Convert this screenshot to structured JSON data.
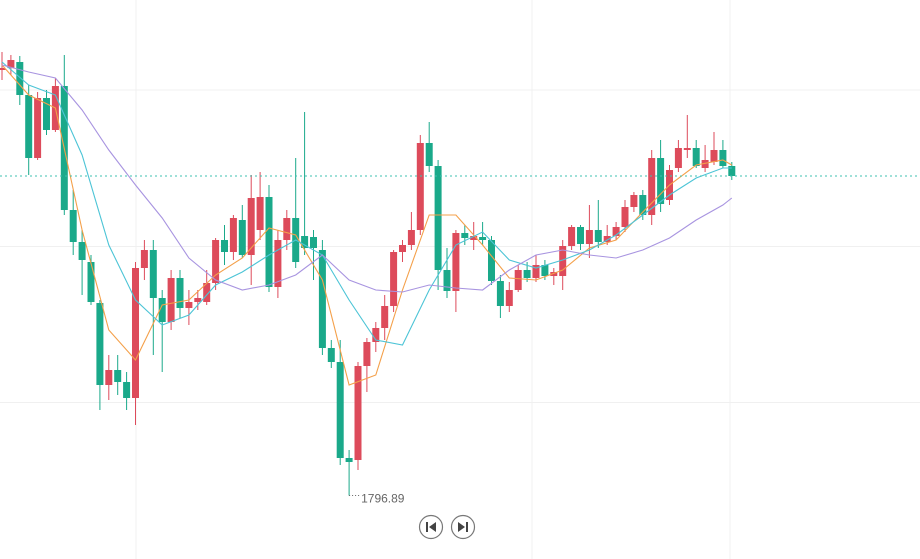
{
  "chart_data": {
    "type": "candlestick",
    "ylim": [
      1784.2,
      1896
    ],
    "ygrid": [
      1815.5,
      1846.7,
      1878
    ],
    "up_color": "#dd4b5b",
    "down_color": "#1aa98a",
    "open": [
      1882,
      1882.4,
      1883.6,
      1877,
      1864.4,
      1876.4,
      1870,
      1878.8,
      1854,
      1847.6,
      1843.6,
      1835.4,
      1819,
      1822,
      1819.6,
      1816.4,
      1842.4,
      1846,
      1836.4,
      1831.6,
      1840.4,
      1834.4,
      1835.6,
      1835.6,
      1839.4,
      1848,
      1845.6,
      1852,
      1845,
      1850,
      1856.6,
      1838.6,
      1848,
      1852.4,
      1848.8,
      1848.6,
      1846,
      1826.4,
      1823.6,
      1804.4,
      1804,
      1822.8,
      1827.6,
      1830.4,
      1834.8,
      1845.6,
      1847,
      1850,
      1867.4,
      1862.8,
      1842,
      1837.8,
      1849.4,
      1848,
      1848.6,
      1848,
      1839.8,
      1834.8,
      1838,
      1842,
      1840.4,
      1843,
      1840.8,
      1840.8,
      1846.8,
      1850.6,
      1847.2,
      1850,
      1847.6,
      1848.8,
      1850.6,
      1854.6,
      1857,
      1853,
      1864.4,
      1856,
      1862.4,
      1866,
      1866.4,
      1862.4,
      1863.6,
      1866,
      1862.8
    ],
    "high": [
      1885.6,
      1885,
      1884.8,
      1879,
      1877.6,
      1878,
      1880.4,
      1885,
      1858,
      1850,
      1845,
      1836,
      1825,
      1825,
      1821.6,
      1843.6,
      1848,
      1848,
      1838,
      1842,
      1842,
      1838,
      1838,
      1842,
      1848.4,
      1851,
      1853,
      1855,
      1861,
      1861.6,
      1859,
      1850,
      1854,
      1864.4,
      1873.6,
      1850,
      1848,
      1828,
      1828,
      1806,
      1823.6,
      1828.4,
      1831.6,
      1837,
      1846,
      1848,
      1853.6,
      1869,
      1871.6,
      1864,
      1846.4,
      1850,
      1851,
      1851.6,
      1851.6,
      1848.8,
      1841,
      1839.6,
      1843,
      1843.6,
      1845,
      1844,
      1842.4,
      1848,
      1851,
      1851,
      1855,
      1856,
      1851,
      1851.6,
      1856,
      1857.6,
      1858,
      1866,
      1868,
      1863,
      1868,
      1873,
      1868,
      1867,
      1869.6,
      1868,
      1863.6
    ],
    "low": [
      1880,
      1881,
      1875,
      1861,
      1864,
      1869,
      1869.6,
      1853,
      1845,
      1837,
      1835,
      1814,
      1816,
      1817,
      1814,
      1811,
      1840,
      1825,
      1821.6,
      1830,
      1832.4,
      1831,
      1834,
      1835,
      1838,
      1843,
      1844,
      1844.4,
      1839,
      1848,
      1837.6,
      1836.4,
      1846,
      1842.4,
      1845,
      1840,
      1825,
      1822.4,
      1803,
      1796.89,
      1802,
      1817.6,
      1825.6,
      1828,
      1833.6,
      1843.6,
      1846,
      1849,
      1861.6,
      1838,
      1836.4,
      1833.6,
      1847,
      1846,
      1847,
      1839,
      1832.4,
      1833.6,
      1837.6,
      1839.6,
      1839.6,
      1840,
      1839,
      1838,
      1846,
      1846,
      1844.4,
      1846.4,
      1847,
      1848,
      1849.6,
      1853.6,
      1852,
      1851,
      1853.6,
      1855,
      1861.6,
      1864.4,
      1862.4,
      1861.6,
      1863,
      1862.4,
      1860
    ],
    "close": [
      1882.4,
      1884,
      1877,
      1864.4,
      1876.4,
      1870,
      1878.8,
      1854,
      1847.6,
      1844,
      1835.6,
      1819,
      1822,
      1819.6,
      1816.4,
      1842.4,
      1846,
      1836.4,
      1831.6,
      1840.4,
      1834.4,
      1835.6,
      1836.4,
      1839.4,
      1848,
      1845.6,
      1852.4,
      1845,
      1856.4,
      1856.6,
      1838.6,
      1848,
      1852.4,
      1843.6,
      1846.4,
      1846.4,
      1826.4,
      1823.6,
      1804.4,
      1803.6,
      1822.8,
      1827.6,
      1830.4,
      1834.8,
      1845.6,
      1847,
      1850,
      1867.4,
      1862.8,
      1842,
      1837.8,
      1849.4,
      1848.4,
      1848.8,
      1848,
      1839.8,
      1834.8,
      1838,
      1842,
      1840.4,
      1843,
      1840.8,
      1841.6,
      1846.8,
      1850.6,
      1847.2,
      1850,
      1847.6,
      1848.8,
      1850.6,
      1854.6,
      1857,
      1853,
      1864.4,
      1855.2,
      1862,
      1866.4,
      1866.4,
      1862.8,
      1864,
      1866,
      1862.8,
      1860.8
    ],
    "last_price_line": true,
    "low_marker": {
      "candle": 39,
      "label": "1796.89"
    },
    "series": [
      {
        "color": "#f4a04a",
        "x": [
          0,
          3,
          6,
          9,
          12,
          15,
          18,
          21,
          24,
          27,
          30,
          33,
          36,
          39,
          42,
          45,
          48,
          51,
          54,
          57,
          60,
          63,
          66,
          69,
          72,
          75,
          78,
          81,
          82
        ],
        "values": [
          1883,
          1877,
          1874.4,
          1850,
          1830,
          1824,
          1835,
          1836,
          1841,
          1844.4,
          1850.4,
          1849,
          1840,
          1819,
          1821,
          1838,
          1853,
          1853,
          1847,
          1840.4,
          1840,
          1842,
          1846.4,
          1848,
          1853.6,
          1859,
          1863,
          1864,
          1863
        ]
      },
      {
        "color": "#4cc4d6",
        "x": [
          0,
          3,
          6,
          9,
          12,
          15,
          18,
          21,
          24,
          27,
          30,
          33,
          36,
          39,
          42,
          45,
          48,
          51,
          54,
          57,
          60,
          63,
          66,
          69,
          72,
          75,
          78,
          81,
          82
        ],
        "values": [
          1883.6,
          1879,
          1877,
          1865,
          1847,
          1836,
          1831,
          1833,
          1839,
          1841.6,
          1845,
          1848,
          1845,
          1836,
          1828,
          1827,
          1838,
          1847,
          1849.6,
          1844,
          1842.4,
          1844,
          1846,
          1849,
          1853,
          1857,
          1860.4,
          1862.4,
          1862.4
        ]
      },
      {
        "color": "#a894e0",
        "x": [
          0,
          3,
          6,
          9,
          12,
          15,
          18,
          21,
          24,
          27,
          30,
          33,
          36,
          39,
          42,
          45,
          48,
          51,
          54,
          57,
          60,
          63,
          66,
          69,
          72,
          75,
          78,
          81,
          82
        ],
        "values": [
          1883,
          1881.6,
          1880.4,
          1874,
          1866,
          1859,
          1852.4,
          1844.4,
          1840,
          1838,
          1839,
          1841,
          1845,
          1840,
          1838,
          1837.6,
          1839,
          1838.4,
          1838,
          1842,
          1845,
          1846,
          1845,
          1844.4,
          1846,
          1848.4,
          1852,
          1855,
          1856.4
        ]
      }
    ]
  }
}
